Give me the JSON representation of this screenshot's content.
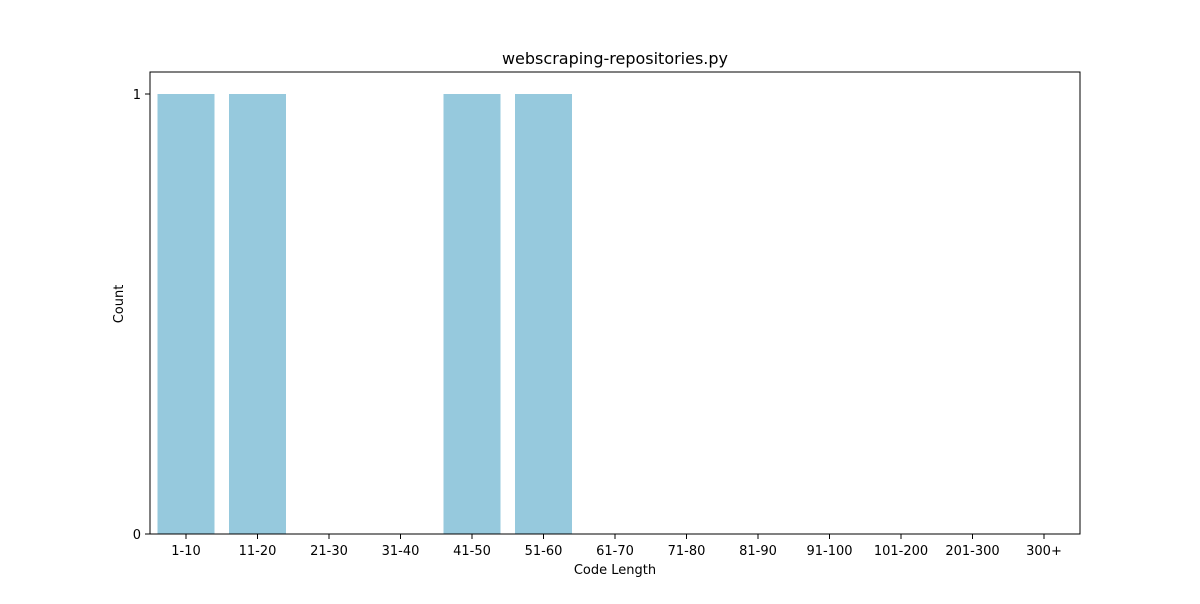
{
  "chart_data": {
    "type": "bar",
    "title": "webscraping-repositories.py",
    "xlabel": "Code Length",
    "ylabel": "Count",
    "categories": [
      "1-10",
      "11-20",
      "21-30",
      "31-40",
      "41-50",
      "51-60",
      "61-70",
      "71-80",
      "81-90",
      "91-100",
      "101-200",
      "201-300",
      "300+"
    ],
    "values": [
      1,
      1,
      0,
      0,
      1,
      1,
      0,
      0,
      0,
      0,
      0,
      0,
      0
    ],
    "ylim": [
      0,
      1
    ],
    "yticks": [
      0,
      1
    ],
    "grid": false,
    "bar_color": "#96c9dd"
  }
}
